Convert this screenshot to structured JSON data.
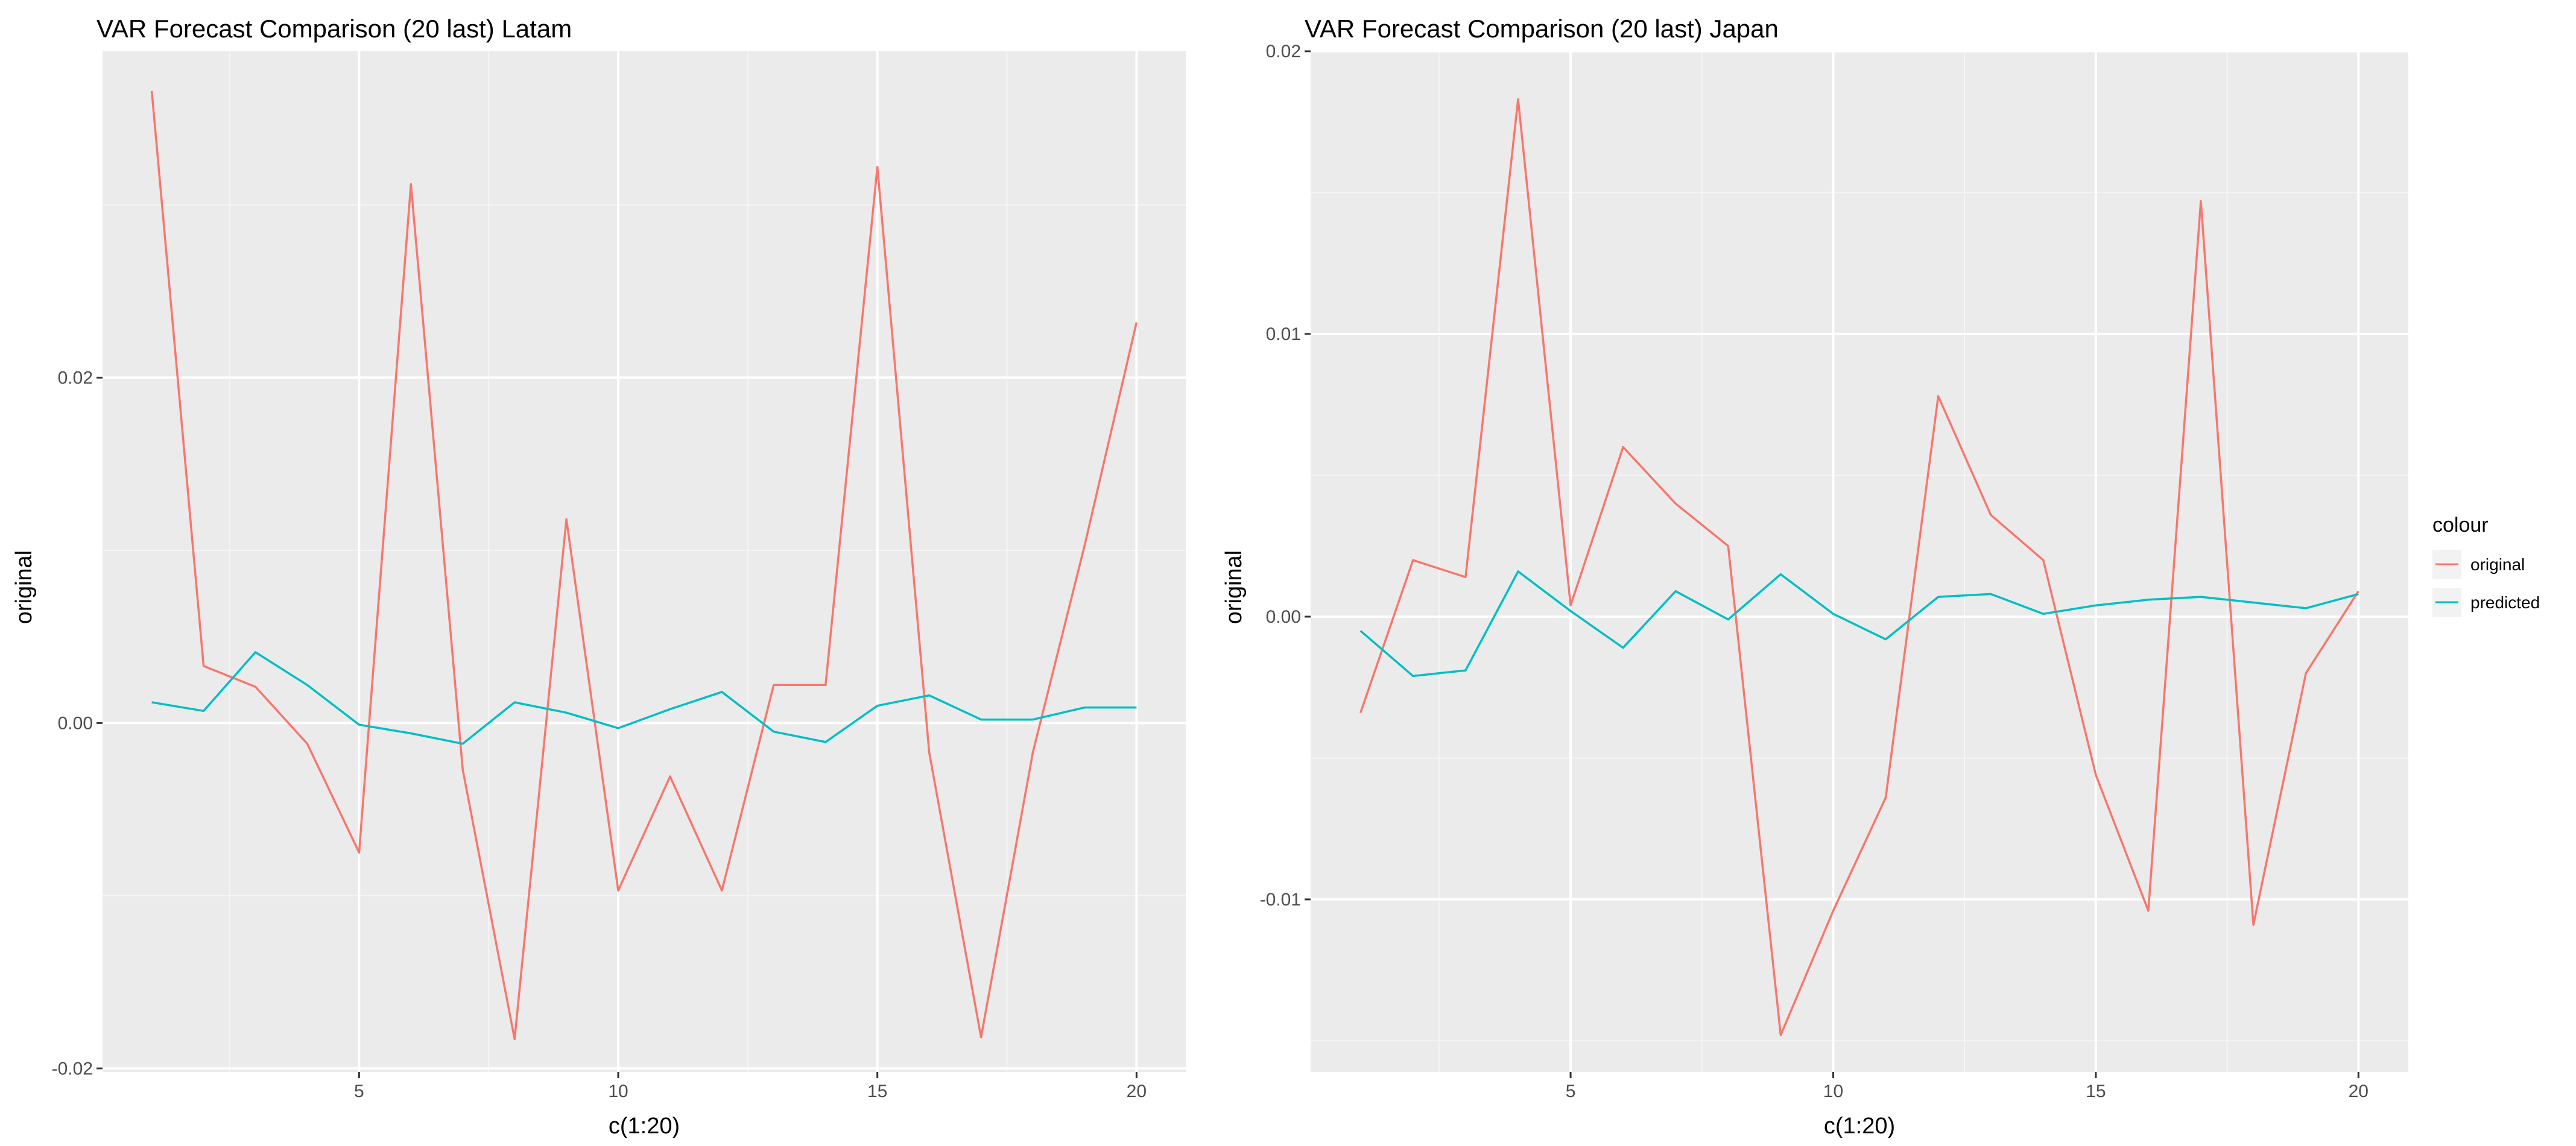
{
  "chart_data": [
    {
      "type": "line",
      "title": "VAR Forecast Comparison (20 last) Latam",
      "xlabel": "c(1:20)",
      "ylabel": "original",
      "x": [
        1,
        2,
        3,
        4,
        5,
        6,
        7,
        8,
        9,
        10,
        11,
        12,
        13,
        14,
        15,
        16,
        17,
        18,
        19,
        20
      ],
      "xlim": [
        0.05,
        20.95
      ],
      "ylim": [
        -0.0202,
        0.0389
      ],
      "x_ticks": [
        5,
        10,
        15,
        20
      ],
      "x_tick_labels": [
        "5",
        "10",
        "15",
        "20"
      ],
      "y_ticks": [
        -0.02,
        0.0,
        0.02
      ],
      "y_tick_labels": [
        "-0.02",
        "0.00",
        "0.02"
      ],
      "grid": true,
      "series": [
        {
          "name": "original",
          "color": "#F8766D",
          "values": [
            0.0366,
            0.0033,
            0.0021,
            -0.0012,
            -0.0075,
            0.0312,
            -0.0027,
            -0.0183,
            0.0118,
            -0.0097,
            -0.0031,
            -0.0097,
            0.0022,
            0.0022,
            0.0322,
            -0.0017,
            -0.0182,
            -0.0017,
            0.0103,
            0.0232
          ]
        },
        {
          "name": "predicted",
          "color": "#00BFC4",
          "values": [
            0.0012,
            0.0007,
            0.0041,
            0.0022,
            -0.0001,
            -0.0006,
            -0.0012,
            0.0012,
            0.0006,
            -0.0003,
            0.0008,
            0.0018,
            -0.0005,
            -0.0011,
            0.001,
            0.0016,
            0.0002,
            0.0002,
            0.0009,
            0.0009
          ]
        }
      ]
    },
    {
      "type": "line",
      "title": "VAR Forecast Comparison (20 last) Japan",
      "xlabel": "c(1:20)",
      "ylabel": "original",
      "x": [
        1,
        2,
        3,
        4,
        5,
        6,
        7,
        8,
        9,
        10,
        11,
        12,
        13,
        14,
        15,
        16,
        17,
        18,
        19,
        20
      ],
      "xlim": [
        0.05,
        20.95
      ],
      "ylim": [
        -0.0161,
        0.02
      ],
      "x_ticks": [
        5,
        10,
        15,
        20
      ],
      "x_tick_labels": [
        "5",
        "10",
        "15",
        "20"
      ],
      "y_ticks": [
        -0.01,
        0.0,
        0.01,
        0.02
      ],
      "y_tick_labels": [
        "-0.01",
        "0.00",
        "0.01",
        "0.02"
      ],
      "grid": true,
      "legend_title": "colour",
      "legend_position": "right",
      "series": [
        {
          "name": "original",
          "color": "#F8766D",
          "values": [
            -0.0034,
            0.002,
            0.0014,
            0.0183,
            0.0004,
            0.006,
            0.004,
            0.0025,
            -0.0148,
            -0.0104,
            -0.0064,
            0.0078,
            0.0036,
            0.002,
            -0.0056,
            -0.0104,
            0.0147,
            -0.0109,
            -0.002,
            0.0009
          ]
        },
        {
          "name": "predicted",
          "color": "#00BFC4",
          "values": [
            -0.0005,
            -0.0021,
            -0.0019,
            0.0016,
            0.0002,
            -0.0011,
            0.0009,
            -0.0001,
            0.0015,
            0.0001,
            -0.0008,
            0.0007,
            0.0008,
            0.0001,
            0.0004,
            0.0006,
            0.0007,
            0.0005,
            0.0003,
            0.0008
          ]
        }
      ]
    }
  ],
  "legend": {
    "title": "colour",
    "items": [
      {
        "label": "original",
        "color": "#F8766D"
      },
      {
        "label": "predicted",
        "color": "#00BFC4"
      }
    ]
  },
  "style": {
    "panel_background": "#EBEBEB",
    "grid_major": "#FFFFFF",
    "grid_minor": "#F5F5F5",
    "tick_color": "#333333"
  }
}
